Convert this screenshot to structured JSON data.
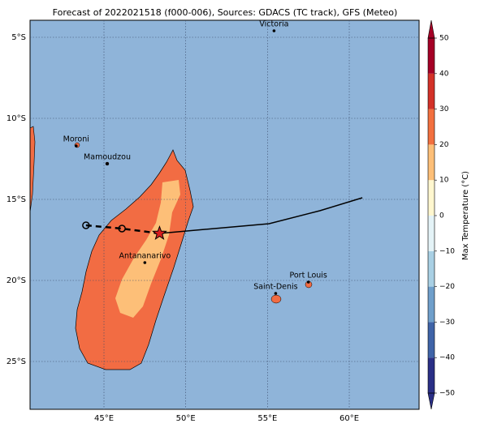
{
  "title": "Forecast of 2022021518 (f000-006), Sources: GDACS (TC track), GFS (Meteo)",
  "map": {
    "xlim": [
      40.48,
      64.27
    ],
    "ylim": [
      -27.95,
      -3.95
    ],
    "xticks": [
      {
        "value": 45,
        "label": "45°E"
      },
      {
        "value": 50,
        "label": "50°E"
      },
      {
        "value": 55,
        "label": "55°E"
      },
      {
        "value": 60,
        "label": "60°E"
      }
    ],
    "yticks": [
      {
        "value": -5,
        "label": "5°S"
      },
      {
        "value": -10,
        "label": "10°S"
      },
      {
        "value": -15,
        "label": "15°S"
      },
      {
        "value": -20,
        "label": "20°S"
      },
      {
        "value": -25,
        "label": "25°S"
      }
    ],
    "cities": [
      {
        "name": "Victoria",
        "lon": 55.4,
        "lat": -4.6
      },
      {
        "name": "Moroni",
        "lon": 43.3,
        "lat": -11.7
      },
      {
        "name": "Mamoudzou",
        "lon": 45.2,
        "lat": -12.8
      },
      {
        "name": "Antananarivo",
        "lon": 47.5,
        "lat": -18.9
      },
      {
        "name": "Port Louis",
        "lon": 57.5,
        "lat": -20.1
      },
      {
        "name": "Saint-Denis",
        "lon": 55.5,
        "lat": -20.8
      }
    ],
    "track_observed": {
      "lon": [
        43.9,
        46.1,
        48.4
      ],
      "lat": [
        -16.6,
        -16.8,
        -17.1
      ]
    },
    "track_forecast": {
      "lon": [
        48.4,
        55.1,
        58.2,
        60.8
      ],
      "lat": [
        -17.1,
        -16.5,
        -15.7,
        -14.9
      ]
    }
  },
  "colorbar": {
    "label": "Max Temperature (°C)",
    "ylim": [
      -50,
      50
    ],
    "yticks": [
      {
        "value": -50,
        "label": "−50"
      },
      {
        "value": -40,
        "label": "−40"
      },
      {
        "value": -30,
        "label": "−30"
      },
      {
        "value": -20,
        "label": "−20"
      },
      {
        "value": -10,
        "label": "−10"
      },
      0,
      10,
      20,
      30,
      40,
      50
    ],
    "levels": [
      -50,
      -40,
      -30,
      -20,
      -10,
      0,
      10,
      20,
      30,
      40,
      50
    ],
    "colors": [
      "#2a2f86",
      "#3f64a8",
      "#6f9fcb",
      "#a9d0e4",
      "#e4f3f7",
      "#fff7cf",
      "#fdbf78",
      "#f2703f",
      "#d33128",
      "#a50026"
    ]
  }
}
